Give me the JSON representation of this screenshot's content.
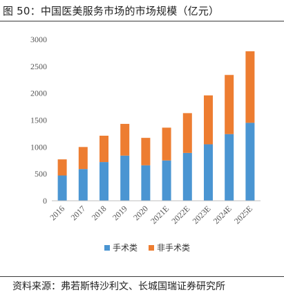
{
  "figure_title": "图 50：中国医美服务市场的市场规模（亿元）",
  "source_note": "资料来源：弗若斯特沙利文、长城国瑞证券研究所",
  "chart_data": {
    "type": "bar",
    "stacked": true,
    "categories": [
      "2016",
      "2017",
      "2018",
      "2019",
      "2020",
      "2021E",
      "2022E",
      "2023E",
      "2024E",
      "2025E"
    ],
    "series": [
      {
        "name": "手术类",
        "color": "#4a95d2",
        "values": [
          470,
          590,
          720,
          840,
          660,
          750,
          890,
          1050,
          1240,
          1450
        ]
      },
      {
        "name": "非手术类",
        "color": "#ed7d31",
        "values": [
          300,
          410,
          490,
          590,
          510,
          610,
          740,
          910,
          1100,
          1330
        ]
      }
    ],
    "ylim": [
      0,
      3000
    ],
    "yticks": [
      0,
      500,
      1000,
      1500,
      2000,
      2500,
      3000
    ],
    "grid": false,
    "legend_position": "bottom"
  }
}
